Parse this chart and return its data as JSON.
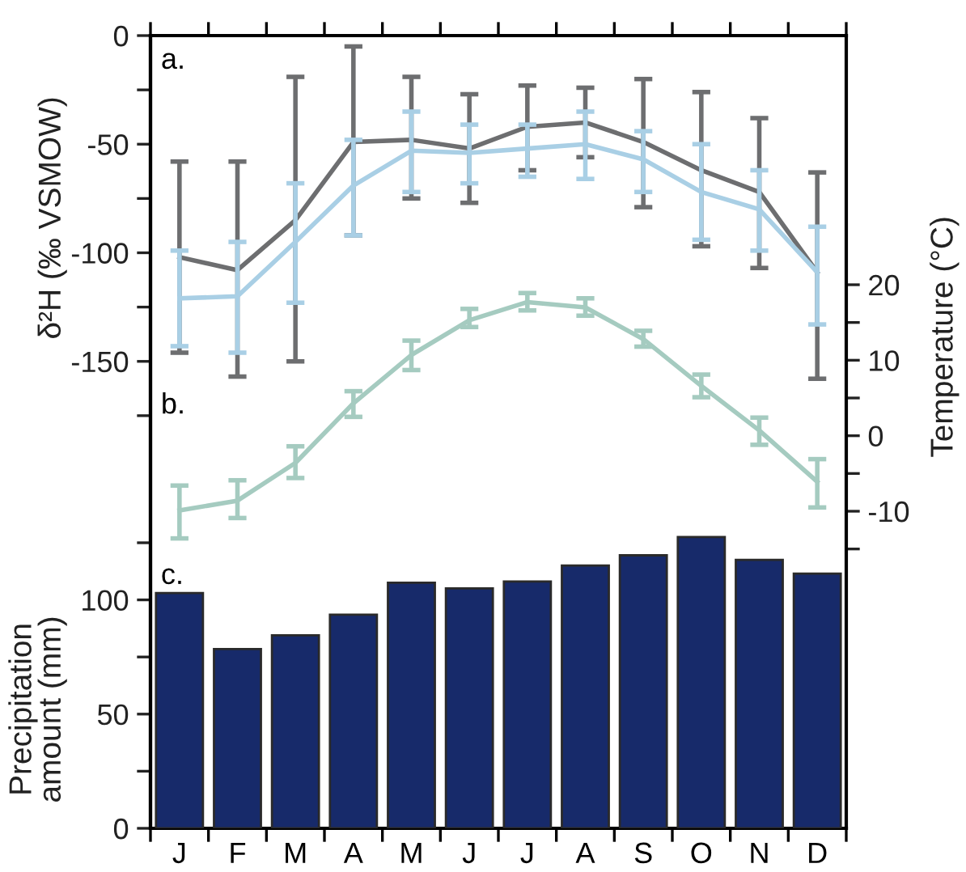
{
  "chart_data": {
    "type": "line",
    "categories": [
      "J",
      "F",
      "M",
      "A",
      "M",
      "J",
      "J",
      "A",
      "S",
      "O",
      "N",
      "D"
    ],
    "ylabel": "δ²H (‰ VSMOW)",
    "y2label": "Temperature (°C)",
    "y3label": "Precipitation\namount (mm)",
    "annotations": [
      "a.",
      "b.",
      "c."
    ],
    "ylim": [
      -365,
      0
    ],
    "yticks": [
      0,
      {
        "value": -25,
        "label": null
      },
      -50,
      {
        "value": -75,
        "label": null
      },
      -100,
      {
        "value": -125,
        "label": null
      },
      -150,
      {
        "value": -175,
        "label": null
      }
    ],
    "y2lim": [
      -52,
      53
    ],
    "y2ticks": [
      20,
      {
        "value": 15,
        "label": null
      },
      10,
      {
        "value": 5,
        "label": null
      },
      0,
      {
        "value": -5,
        "label": null
      },
      -10,
      {
        "value": -15,
        "label": null
      }
    ],
    "y3lim": [
      0,
      347
    ],
    "y3ticks": [
      0,
      {
        "value": 25,
        "label": null
      },
      50,
      {
        "value": 75,
        "label": null
      },
      100,
      {
        "value": 125,
        "label": null
      }
    ],
    "legend": false,
    "marker": "none",
    "line_style": "solid",
    "series": [
      {
        "color": "#6d6e70",
        "values": [
          -102,
          -108,
          -85,
          -49,
          -48,
          -52,
          -42,
          -40,
          -49,
          -62,
          -72,
          -109
        ],
        "errors": [
          [
            -146,
            -58
          ],
          [
            -157,
            -58
          ],
          [
            -150,
            -19
          ],
          [
            -92,
            -5
          ],
          [
            -75,
            -19
          ],
          [
            -77,
            -27
          ],
          [
            -62,
            -23
          ],
          [
            -56,
            -24
          ],
          [
            -79,
            -20
          ],
          [
            -97,
            -26
          ],
          [
            -107,
            -38
          ],
          [
            -158,
            -63
          ]
        ]
      },
      {
        "color": "#a9cfe5",
        "values": [
          -121,
          -120,
          -95,
          -69,
          -53,
          -54,
          -52,
          -50,
          -57,
          -72,
          -80,
          -109
        ],
        "errors": [
          [
            -143,
            -99
          ],
          [
            -146,
            -95
          ],
          [
            -123,
            -68
          ],
          [
            -92,
            -48
          ],
          [
            -72,
            -35
          ],
          [
            -68,
            -41
          ],
          [
            -65,
            -41
          ],
          [
            -66,
            -35
          ],
          [
            -72,
            -44
          ],
          [
            -94,
            -50
          ],
          [
            -99,
            -62
          ],
          [
            -133,
            -88
          ]
        ]
      },
      {
        "color": "#a5cbc0",
        "axis": "y2",
        "values": [
          -9.9,
          -8.6,
          -3.6,
          4.3,
          10.7,
          15.3,
          17.7,
          17.0,
          12.8,
          6.6,
          0.7,
          -6.1
        ],
        "errors": [
          [
            -13.6,
            -6.6
          ],
          [
            -10.9,
            -5.9
          ],
          [
            -5.6,
            -1.4
          ],
          [
            2.5,
            5.9
          ],
          [
            8.7,
            12.6
          ],
          [
            14.4,
            16.8
          ],
          [
            16.6,
            18.9
          ],
          [
            15.9,
            18.2
          ],
          [
            11.8,
            13.9
          ],
          [
            5.1,
            8.1
          ],
          [
            -1.2,
            2.4
          ],
          [
            -9.5,
            -3.1
          ]
        ]
      },
      {
        "type": "bar",
        "axis": "y3",
        "color": "#172a6a",
        "values": [
          103,
          78.5,
          84.5,
          93.5,
          107.5,
          105,
          108,
          115,
          119.5,
          127.5,
          117.5,
          111.5
        ]
      }
    ]
  }
}
